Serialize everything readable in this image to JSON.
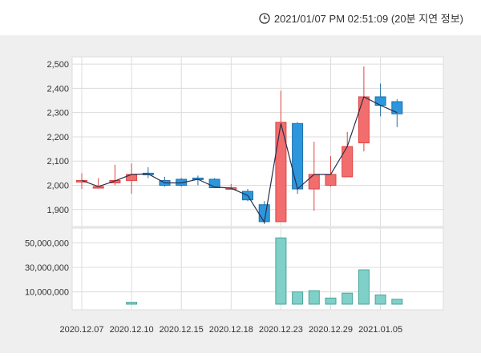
{
  "header": {
    "clock_icon": "clock-icon",
    "timestamp": "2021/01/07 PM 02:51:09 (20분 지연 정보)"
  },
  "colors": {
    "up": "#f26d6d",
    "down": "#2c97dd",
    "volume": "#7fd0c8",
    "ma_line": "#2a2f4a",
    "grid": "#dcdcdc",
    "panel_bg": "#efefef"
  },
  "chart_data": [
    {
      "type": "candlestick",
      "title": "",
      "xlabel": "",
      "ylabel": "",
      "ylim": [
        1830,
        2530
      ],
      "yticks": [
        1900,
        2000,
        2100,
        2200,
        2300,
        2400,
        2500
      ],
      "ytick_labels": [
        "1,900",
        "2,000",
        "2,100",
        "2,200",
        "2,300",
        "2,400",
        "2,500"
      ],
      "candles": [
        {
          "open": 2020,
          "high": 2050,
          "low": 1985,
          "close": 2020
        },
        {
          "open": 1995,
          "high": 2030,
          "low": 1990,
          "close": 1995
        },
        {
          "open": 2010,
          "high": 2085,
          "low": 2000,
          "close": 2020
        },
        {
          "open": 2020,
          "high": 2090,
          "low": 1965,
          "close": 2045
        },
        {
          "open": 2050,
          "high": 2075,
          "low": 2030,
          "close": 2045
        },
        {
          "open": 2020,
          "high": 2035,
          "low": 1995,
          "close": 2000
        },
        {
          "open": 2025,
          "high": 2030,
          "low": 1995,
          "close": 2000
        },
        {
          "open": 2030,
          "high": 2040,
          "low": 2000,
          "close": 2025
        },
        {
          "open": 2025,
          "high": 2030,
          "low": 1990,
          "close": 1990
        },
        {
          "open": 1990,
          "high": 2005,
          "low": 1985,
          "close": 1990
        },
        {
          "open": 1975,
          "high": 1985,
          "low": 1935,
          "close": 1940
        },
        {
          "open": 1920,
          "high": 1935,
          "low": 1840,
          "close": 1850
        },
        {
          "open": 1850,
          "high": 2390,
          "low": 1850,
          "close": 2260
        },
        {
          "open": 2255,
          "high": 2260,
          "low": 1965,
          "close": 1985
        },
        {
          "open": 1985,
          "high": 2180,
          "low": 1895,
          "close": 2045
        },
        {
          "open": 2000,
          "high": 2120,
          "low": 1995,
          "close": 2045
        },
        {
          "open": 2035,
          "high": 2220,
          "low": 2035,
          "close": 2160
        },
        {
          "open": 2175,
          "high": 2490,
          "low": 2140,
          "close": 2365
        },
        {
          "open": 2365,
          "high": 2420,
          "low": 2285,
          "close": 2330
        },
        {
          "open": 2345,
          "high": 2355,
          "low": 2240,
          "close": 2295
        }
      ],
      "ma_line": [
        2020,
        1995,
        2018,
        2045,
        2047,
        2010,
        2010,
        2025,
        1993,
        1988,
        1958,
        1848,
        2255,
        1985,
        2045,
        2045,
        2160,
        2365,
        2330,
        2300
      ]
    },
    {
      "type": "bar",
      "title": "",
      "xlabel": "",
      "ylabel": "",
      "ylim": [
        0,
        60000000
      ],
      "yticks": [
        10000000,
        30000000,
        50000000
      ],
      "ytick_labels": [
        "10,000,000",
        "30,000,000",
        "50,000,000"
      ],
      "values": [
        0,
        0,
        0,
        1500000,
        0,
        0,
        0,
        0,
        0,
        0,
        0,
        0,
        54000000,
        10000000,
        11000000,
        5000000,
        9000000,
        28000000,
        7500000,
        4000000
      ]
    }
  ],
  "x_axis": {
    "labels": [
      "2020.12.07",
      "2020.12.10",
      "2020.12.15",
      "2020.12.18",
      "2020.12.23",
      "2020.12.29",
      "2021.01.05"
    ],
    "label_candle_index": [
      0,
      3,
      6,
      9,
      12,
      15,
      18
    ]
  }
}
